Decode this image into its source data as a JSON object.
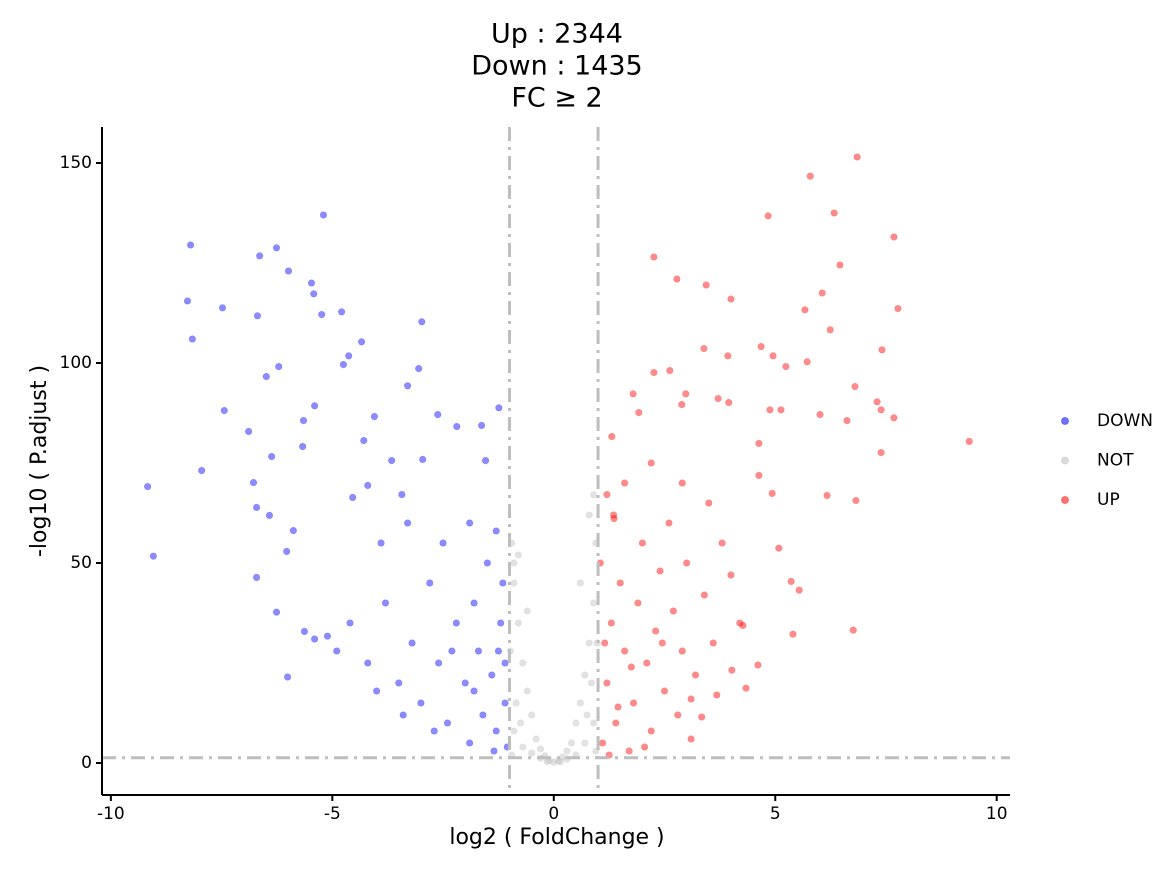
{
  "chart_data": {
    "type": "scatter",
    "title": [
      "Up :  2344",
      "Down : 1435",
      "FC ≥ 2"
    ],
    "x_label": "log2 ( FoldChange )",
    "y_label": "-log10 ( P.adjust )",
    "xlim": [
      -10.2,
      10.3
    ],
    "ylim": [
      -8,
      159
    ],
    "xticks": [
      -10,
      -5,
      0,
      5,
      10
    ],
    "yticks": [
      0,
      50,
      100,
      150
    ],
    "threshold_x": [
      -1,
      1
    ],
    "threshold_y": 1.3,
    "threshold_color": "#bebebe",
    "legend": "right",
    "grid": false,
    "opacity": 0.45,
    "series": [
      {
        "name": "DOWN",
        "color": "#0000ff",
        "x": [
          -9.17,
          -9.04,
          -8.2,
          -8.27,
          -8.16,
          -7.48,
          -7.44,
          -7.95,
          -6.89,
          -6.69,
          -6.64,
          -6.26,
          -5.99,
          -6.49,
          -6.21,
          -5.47,
          -5.42,
          -5.2,
          -4.79,
          -5.24,
          -4.34,
          -4.63,
          -4.75,
          -2.98,
          -3.05,
          -3.3,
          -4.05,
          -4.29,
          -5.4,
          -5.65,
          -5.67,
          -6.37,
          -6.78,
          -6.71,
          -6.42,
          -5.88,
          -6.03,
          -6.71,
          -6.01,
          -6.26,
          -5.63,
          -5.11,
          -2.62,
          -2.19,
          -1.63,
          -1.24,
          -1.54,
          -3.66,
          -3.43,
          -4.2,
          -4.54,
          -2.96,
          -4.6,
          -4.2,
          -3.8,
          -3.5,
          -3.2,
          -3,
          -2.8,
          -2.6,
          -2.4,
          -2.2,
          -2,
          -1.9,
          -1.8,
          -1.7,
          -1.6,
          -1.5,
          -1.4,
          -1.3,
          -1.2,
          -1.1,
          -1.05,
          -1.15,
          -1.25,
          -1.35,
          -1.8,
          -2.3,
          -2.7,
          -3.4,
          -4,
          -4.9,
          -5.4,
          -3.9,
          -3.3,
          -2.5,
          -1.9,
          -1.3,
          -1.1
        ],
        "y": [
          69.1,
          51.7,
          129.5,
          115.5,
          106,
          113.8,
          88.1,
          73.1,
          82.9,
          111.8,
          126.8,
          128.8,
          123,
          96.6,
          99.1,
          120,
          117.3,
          137,
          112.8,
          112.1,
          105.3,
          101.8,
          99.6,
          110.3,
          98.6,
          94.3,
          86.6,
          80.6,
          89.3,
          85.6,
          79.1,
          76.6,
          70.1,
          63.9,
          61.9,
          58.1,
          52.9,
          46.4,
          21.5,
          37.7,
          32.9,
          31.7,
          87.1,
          84.1,
          84.4,
          88.8,
          75.6,
          75.6,
          67.1,
          69.4,
          66.4,
          75.9,
          35,
          25,
          40,
          20,
          30,
          15,
          45,
          25,
          10,
          35,
          20,
          5,
          40,
          28,
          12,
          50,
          22,
          8,
          35,
          15,
          4,
          45,
          28,
          3,
          18,
          28,
          8,
          12,
          18,
          28,
          31,
          55,
          60,
          55,
          60,
          58,
          25
        ]
      },
      {
        "name": "NOT",
        "color": "#bebebe",
        "x": [
          0,
          0.1,
          -0.1,
          0.2,
          -0.2,
          0.3,
          -0.3,
          0.4,
          -0.4,
          0.5,
          -0.5,
          0.6,
          -0.6,
          0.7,
          -0.7,
          0.8,
          -0.8,
          0.9,
          -0.9,
          0.95,
          -0.95,
          0.85,
          -0.85,
          0.9,
          -0.9,
          0.7,
          -0.7,
          0.95,
          -0.95,
          0.5,
          -0.5,
          0.8,
          0.9,
          -0.9,
          -0.8,
          0.6,
          -0.6,
          0.75,
          -0.75,
          0.98,
          -0.98,
          0.3,
          -0.3,
          0.15,
          -0.15
        ],
        "y": [
          0.2,
          0.5,
          0.6,
          1.5,
          1.8,
          3,
          3.5,
          5,
          6,
          10,
          12,
          15,
          18,
          22,
          25,
          30,
          35,
          40,
          45,
          55,
          55,
          20,
          15,
          10,
          8,
          5,
          4,
          3,
          2,
          2,
          2.5,
          62,
          67,
          50,
          52,
          45,
          38,
          12,
          10,
          30,
          28,
          1,
          1.2,
          0.3,
          0.4
        ]
      },
      {
        "name": "UP",
        "color": "#ff0000",
        "x": [
          6.85,
          5.79,
          6.33,
          4.84,
          7.68,
          2.26,
          6.46,
          2.78,
          3.44,
          6.06,
          4,
          7.77,
          5.67,
          6.24,
          3.39,
          4.68,
          7.41,
          3.93,
          4.95,
          5.72,
          5.24,
          2.62,
          2.26,
          2.98,
          1.79,
          6.8,
          7.3,
          7.39,
          7.68,
          6.01,
          6.62,
          4.88,
          5.13,
          9.38,
          7.39,
          6.82,
          6.17,
          4.63,
          3.95,
          3.71,
          1.31,
          1.2,
          1.36,
          1.92,
          2.89,
          6.76,
          5.4,
          5.54,
          5.36,
          5.08,
          4.93,
          4.63,
          4.27,
          4.61,
          4.34,
          3.34,
          3.68,
          3.1,
          4.02,
          1.1,
          1.2,
          1.3,
          1.4,
          1.5,
          1.6,
          1.7,
          1.8,
          1.9,
          2,
          2.1,
          2.2,
          2.3,
          2.4,
          2.5,
          2.6,
          2.7,
          2.8,
          2.9,
          3,
          3.2,
          3.4,
          3.6,
          3.8,
          4,
          4.2,
          1.05,
          1.15,
          1.25,
          1.35,
          1.6,
          2.2,
          2.9,
          3.5,
          1.45,
          1.75,
          2.05,
          2.45,
          3.1
        ],
        "y": [
          151.5,
          146.7,
          137.5,
          136.8,
          131.5,
          126.5,
          124.5,
          121,
          119.5,
          117.5,
          116,
          113.6,
          113.3,
          108.3,
          103.6,
          104.1,
          103.3,
          101.8,
          101.8,
          100.3,
          99.1,
          98.1,
          97.6,
          92.3,
          92.3,
          94.1,
          90.3,
          88.3,
          86.3,
          87.1,
          85.6,
          88.3,
          88.3,
          80.4,
          77.6,
          65.6,
          66.9,
          79.9,
          90.1,
          91.1,
          81.6,
          67.1,
          61.1,
          87.6,
          89.6,
          33.2,
          32.2,
          43.2,
          45.4,
          53.7,
          67.4,
          71.9,
          34.4,
          24.5,
          18.7,
          11.5,
          17,
          16,
          23.2,
          5,
          20,
          35,
          10,
          45,
          28,
          3,
          15,
          40,
          55,
          25,
          8,
          33,
          48,
          18,
          60,
          38,
          12,
          28,
          50,
          22,
          42,
          30,
          55,
          47,
          35,
          50,
          30,
          2,
          62,
          70,
          75,
          70,
          65,
          14,
          24,
          4,
          30,
          6
        ]
      }
    ]
  }
}
